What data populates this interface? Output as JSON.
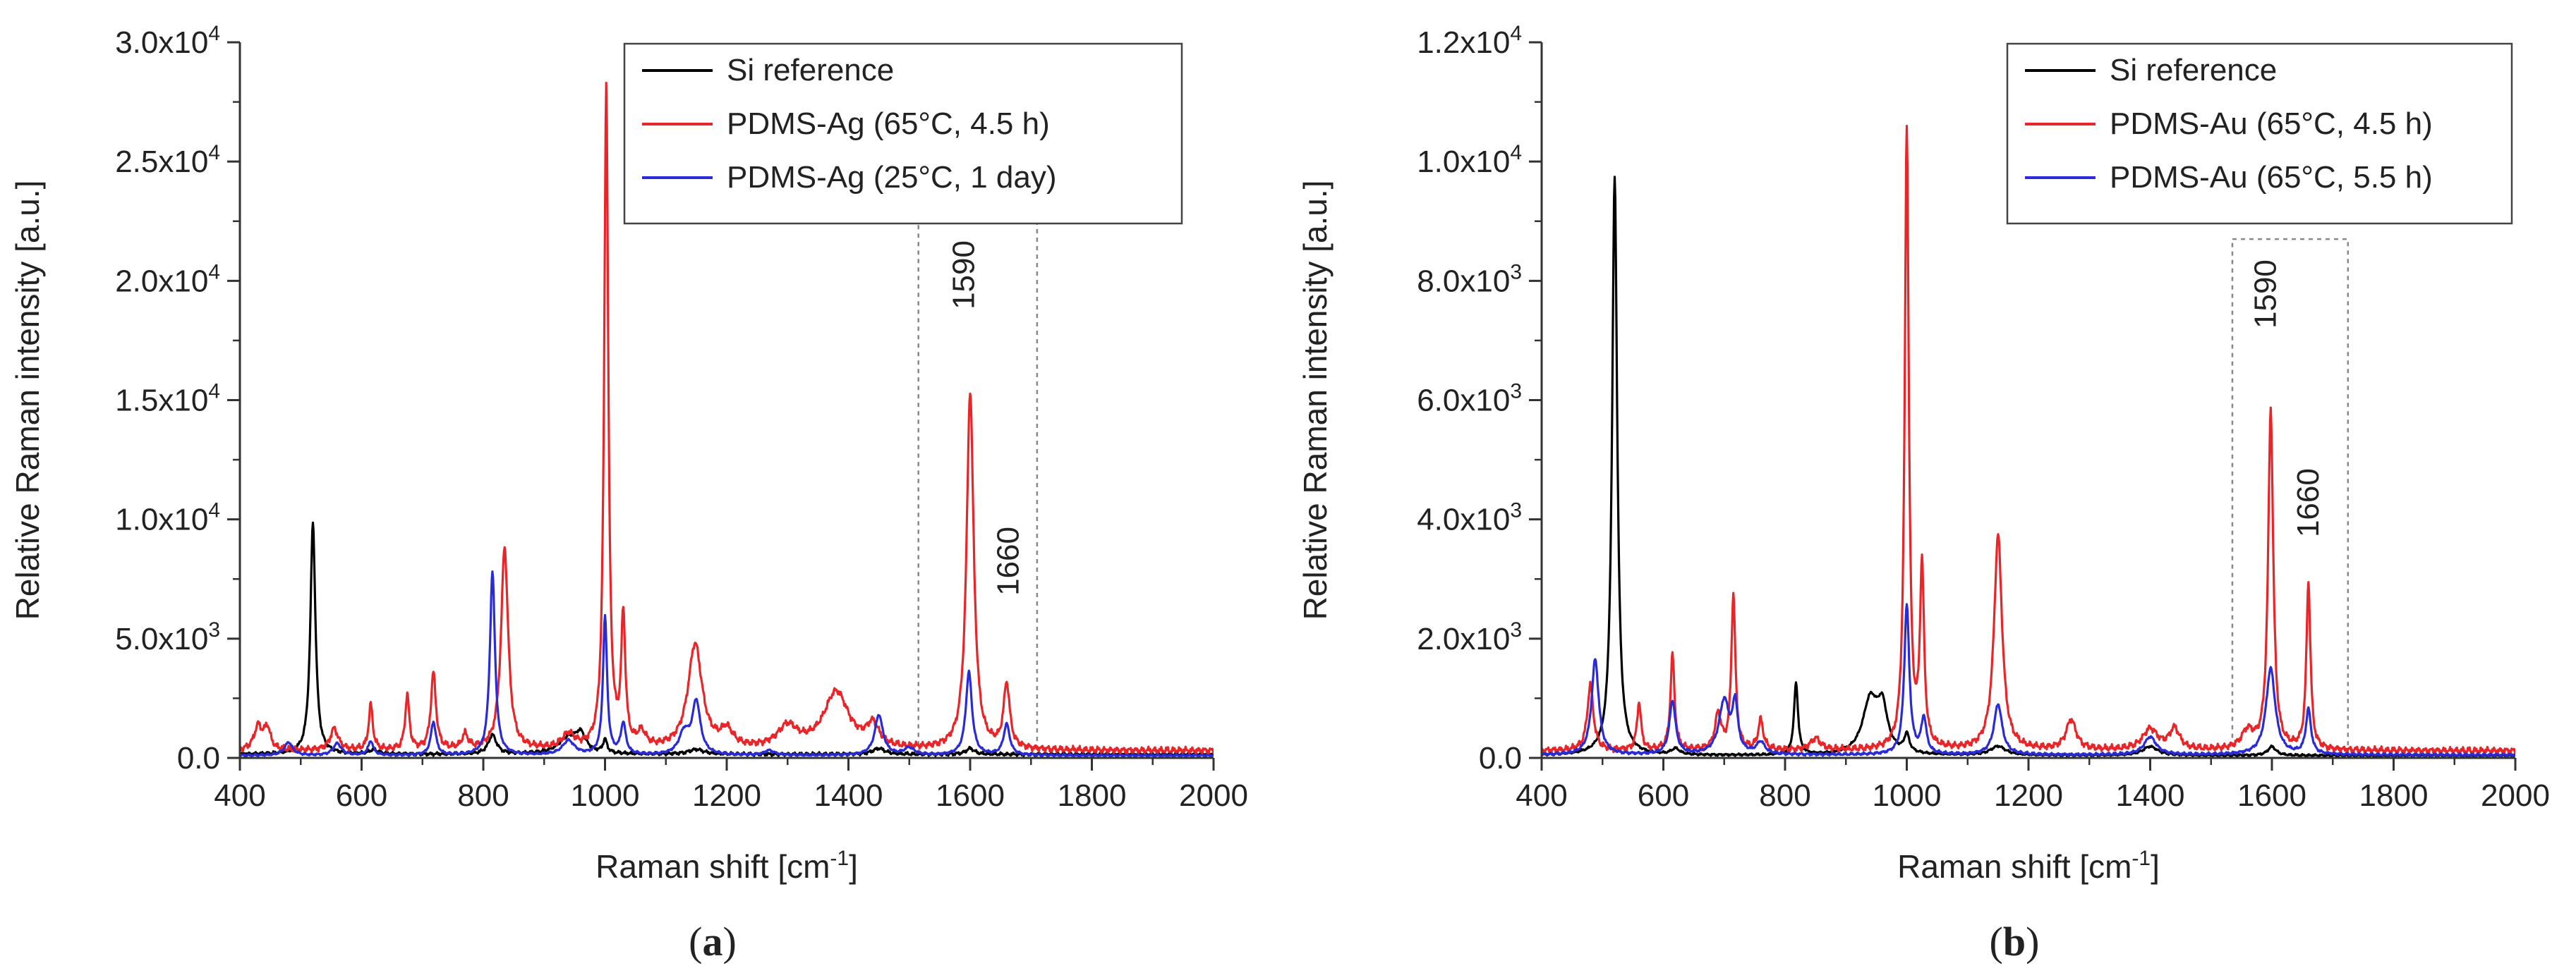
{
  "chart_data": [
    {
      "type": "line",
      "panel_label": "(a)",
      "panel_letter": "a",
      "xlabel": "Raman shift [cm",
      "xlabel_sup": "-1",
      "xlabel_end": "]",
      "ylabel": "Relative Raman intensity [a.u.]",
      "xlim": [
        400,
        2000
      ],
      "ylim": [
        0,
        30000
      ],
      "xticks": [
        400,
        600,
        800,
        1000,
        1200,
        1400,
        1600,
        1800,
        2000
      ],
      "yticks": [
        {
          "value": 0,
          "label": "0.0",
          "exp": ""
        },
        {
          "value": 5000,
          "label": "5.0x10",
          "exp": "3"
        },
        {
          "value": 10000,
          "label": "1.0x10",
          "exp": "4"
        },
        {
          "value": 15000,
          "label": "1.5x10",
          "exp": "4"
        },
        {
          "value": 20000,
          "label": "2.0x10",
          "exp": "4"
        },
        {
          "value": 25000,
          "label": "2.5x10",
          "exp": "4"
        },
        {
          "value": 30000,
          "label": "3.0x10",
          "exp": "4"
        }
      ],
      "highlight_box": {
        "x": [
          1515,
          1710
        ],
        "y": [
          0,
          25000
        ]
      },
      "peak_labels": [
        {
          "text": "1590",
          "x": 1590,
          "y": 18800
        },
        {
          "text": "1660",
          "x": 1663,
          "y": 6800
        }
      ],
      "legend_position": "top-center",
      "series": [
        {
          "name": "Si reference",
          "color": "#000000",
          "baseline": 150,
          "peaks": [
            [
              520,
              9700,
              5
            ],
            [
              620,
              180,
              8
            ],
            [
              815,
              800,
              8
            ],
            [
              940,
              650,
              20
            ],
            [
              960,
              700,
              10
            ],
            [
              1000,
              550,
              4
            ],
            [
              1150,
              200,
              15
            ],
            [
              1450,
              250,
              12
            ],
            [
              1600,
              250,
              8
            ]
          ]
        },
        {
          "name": "PDMS-Ag (65°C, 4.5 h)",
          "color": "#e8262a",
          "baseline": 300,
          "peaks": [
            [
              430,
              1000,
              8
            ],
            [
              445,
              900,
              6
            ],
            [
              555,
              900,
              8
            ],
            [
              615,
              1900,
              4
            ],
            [
              675,
              2300,
              4
            ],
            [
              718,
              3200,
              5
            ],
            [
              770,
              600,
              6
            ],
            [
              835,
              8500,
              7
            ],
            [
              940,
              600,
              12
            ],
            [
              1002,
              27800,
              4
            ],
            [
              1030,
              5400,
              4
            ],
            [
              1060,
              600,
              8
            ],
            [
              1148,
              4400,
              14
            ],
            [
              1200,
              700,
              12
            ],
            [
              1300,
              900,
              20
            ],
            [
              1380,
              2400,
              25
            ],
            [
              1440,
              900,
              12
            ],
            [
              1600,
              15000,
              7
            ],
            [
              1660,
              2700,
              6
            ]
          ]
        },
        {
          "name": "PDMS-Ag (25°C, 1 day)",
          "color": "#2b2bd6",
          "baseline": 100,
          "peaks": [
            [
              480,
              550,
              8
            ],
            [
              560,
              500,
              8
            ],
            [
              615,
              600,
              5
            ],
            [
              718,
              1400,
              5
            ],
            [
              815,
              7700,
              5
            ],
            [
              940,
              600,
              12
            ],
            [
              1000,
              5800,
              4
            ],
            [
              1030,
              1300,
              5
            ],
            [
              1130,
              900,
              10
            ],
            [
              1150,
              2200,
              8
            ],
            [
              1270,
              200,
              10
            ],
            [
              1450,
              1700,
              8
            ],
            [
              1500,
              300,
              10
            ],
            [
              1598,
              3500,
              6
            ],
            [
              1660,
              1300,
              6
            ]
          ]
        }
      ]
    },
    {
      "type": "line",
      "panel_label": "(b)",
      "panel_letter": "b",
      "xlabel": "Raman shift [cm",
      "xlabel_sup": "-1",
      "xlabel_end": "]",
      "ylabel": "Relative Raman intensity [a.u.]",
      "xlim": [
        400,
        2000
      ],
      "ylim": [
        0,
        12000
      ],
      "xticks": [
        400,
        600,
        800,
        1000,
        1200,
        1400,
        1600,
        1800,
        2000
      ],
      "yticks": [
        {
          "value": 0,
          "label": "0.0",
          "exp": ""
        },
        {
          "value": 2000,
          "label": "2.0x10",
          "exp": "3"
        },
        {
          "value": 4000,
          "label": "4.0x10",
          "exp": "3"
        },
        {
          "value": 6000,
          "label": "6.0x10",
          "exp": "3"
        },
        {
          "value": 8000,
          "label": "8.0x10",
          "exp": "3"
        },
        {
          "value": 10000,
          "label": "1.0x10",
          "exp": "4"
        },
        {
          "value": 12000,
          "label": "1.2x10",
          "exp": "4"
        }
      ],
      "highlight_box": {
        "x": [
          1535,
          1725
        ],
        "y": [
          0,
          8700
        ]
      },
      "peak_labels": [
        {
          "text": "1590",
          "x": 1590,
          "y": 7200
        },
        {
          "text": "1660",
          "x": 1660,
          "y": 3700
        }
      ],
      "legend_position": "top-right",
      "series": [
        {
          "name": "Si reference",
          "color": "#000000",
          "baseline": 40,
          "peaks": [
            [
              520,
              9700,
              5
            ],
            [
              620,
              100,
              8
            ],
            [
              818,
              1200,
              4
            ],
            [
              940,
              900,
              15
            ],
            [
              960,
              700,
              10
            ],
            [
              1000,
              300,
              5
            ],
            [
              1150,
              150,
              15
            ],
            [
              1400,
              150,
              15
            ],
            [
              1600,
              150,
              8
            ]
          ]
        },
        {
          "name": "PDMS-Au (65°C, 4.5 h)",
          "color": "#e8262a",
          "baseline": 120,
          "peaks": [
            [
              480,
              1100,
              6
            ],
            [
              560,
              800,
              4
            ],
            [
              615,
              1600,
              4
            ],
            [
              690,
              600,
              6
            ],
            [
              715,
              2600,
              4
            ],
            [
              760,
              500,
              5
            ],
            [
              850,
              200,
              10
            ],
            [
              1000,
              10400,
              4
            ],
            [
              1025,
              3000,
              4
            ],
            [
              1150,
              3600,
              8
            ],
            [
              1270,
              500,
              10
            ],
            [
              1400,
              350,
              15
            ],
            [
              1440,
              350,
              10
            ],
            [
              1560,
              300,
              12
            ],
            [
              1598,
              5700,
              5
            ],
            [
              1660,
              2800,
              4
            ]
          ]
        },
        {
          "name": "PDMS-Au (65°C, 5.5 h)",
          "color": "#2b2bd6",
          "baseline": 50,
          "peaks": [
            [
              488,
              1600,
              7
            ],
            [
              615,
              900,
              6
            ],
            [
              700,
              900,
              10
            ],
            [
              718,
              800,
              5
            ],
            [
              760,
              200,
              8
            ],
            [
              1000,
              2500,
              5
            ],
            [
              1028,
              600,
              5
            ],
            [
              1150,
              850,
              8
            ],
            [
              1400,
              300,
              12
            ],
            [
              1598,
              1450,
              9
            ],
            [
              1660,
              750,
              5
            ]
          ]
        }
      ]
    }
  ]
}
